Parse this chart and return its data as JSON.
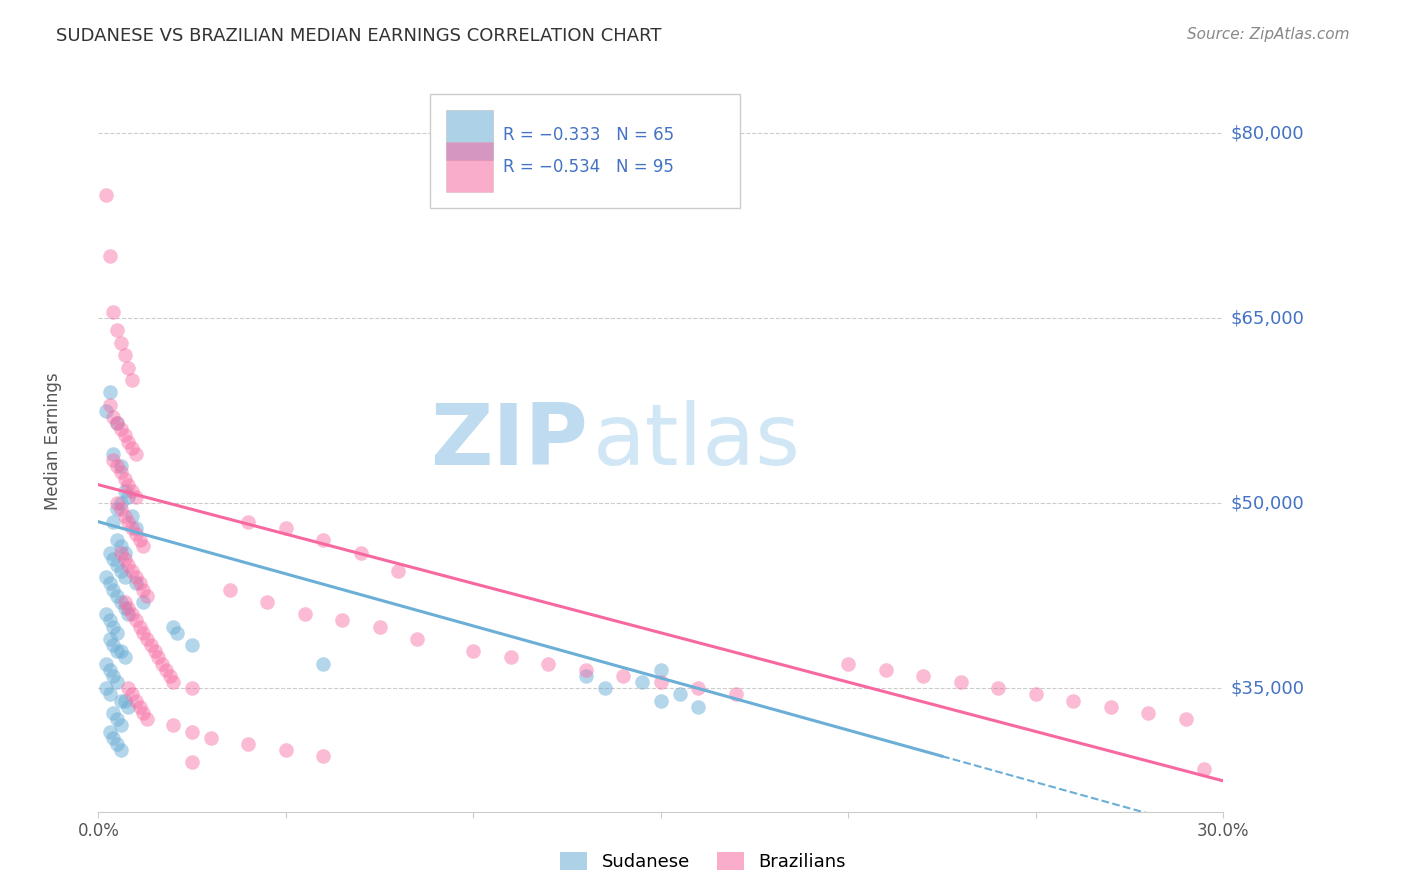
{
  "title": "SUDANESE VS BRAZILIAN MEDIAN EARNINGS CORRELATION CHART",
  "source": "Source: ZipAtlas.com",
  "ylabel": "Median Earnings",
  "yticks": [
    35000,
    50000,
    65000,
    80000
  ],
  "ytick_labels": [
    "$35,000",
    "$50,000",
    "$65,000",
    "$80,000"
  ],
  "ymin": 25000,
  "ymax": 85000,
  "xmin": 0.0,
  "xmax": 0.3,
  "blue_color": "#6baed6",
  "pink_color": "#f768a1",
  "watermark_zip": "ZIP",
  "watermark_atlas": "atlas",
  "watermark_color_zip": "#c5dff0",
  "watermark_color_atlas": "#d8eef8",
  "title_color": "#333333",
  "ytick_color": "#4472c4",
  "grid_color": "#cccccc",
  "blue_line_x0": 0.0,
  "blue_line_x1": 0.225,
  "blue_line_y0": 48500,
  "blue_line_y1": 29500,
  "pink_line_x0": 0.0,
  "pink_line_x1": 0.3,
  "pink_line_y0": 51500,
  "pink_line_y1": 27500,
  "blue_points": [
    [
      0.002,
      57500
    ],
    [
      0.003,
      59000
    ],
    [
      0.004,
      54000
    ],
    [
      0.005,
      56500
    ],
    [
      0.006,
      53000
    ],
    [
      0.007,
      51000
    ],
    [
      0.005,
      49500
    ],
    [
      0.006,
      50000
    ],
    [
      0.008,
      50500
    ],
    [
      0.009,
      49000
    ],
    [
      0.01,
      48000
    ],
    [
      0.004,
      48500
    ],
    [
      0.005,
      47000
    ],
    [
      0.006,
      46500
    ],
    [
      0.007,
      46000
    ],
    [
      0.003,
      46000
    ],
    [
      0.004,
      45500
    ],
    [
      0.005,
      45000
    ],
    [
      0.006,
      44500
    ],
    [
      0.007,
      44000
    ],
    [
      0.002,
      44000
    ],
    [
      0.003,
      43500
    ],
    [
      0.004,
      43000
    ],
    [
      0.005,
      42500
    ],
    [
      0.006,
      42000
    ],
    [
      0.007,
      41500
    ],
    [
      0.008,
      41000
    ],
    [
      0.002,
      41000
    ],
    [
      0.003,
      40500
    ],
    [
      0.004,
      40000
    ],
    [
      0.005,
      39500
    ],
    [
      0.003,
      39000
    ],
    [
      0.004,
      38500
    ],
    [
      0.005,
      38000
    ],
    [
      0.006,
      38000
    ],
    [
      0.007,
      37500
    ],
    [
      0.002,
      37000
    ],
    [
      0.003,
      36500
    ],
    [
      0.004,
      36000
    ],
    [
      0.005,
      35500
    ],
    [
      0.002,
      35000
    ],
    [
      0.003,
      34500
    ],
    [
      0.006,
      34000
    ],
    [
      0.007,
      34000
    ],
    [
      0.008,
      33500
    ],
    [
      0.004,
      33000
    ],
    [
      0.005,
      32500
    ],
    [
      0.006,
      32000
    ],
    [
      0.003,
      31500
    ],
    [
      0.004,
      31000
    ],
    [
      0.005,
      30500
    ],
    [
      0.006,
      30000
    ],
    [
      0.01,
      43500
    ],
    [
      0.012,
      42000
    ],
    [
      0.02,
      40000
    ],
    [
      0.021,
      39500
    ],
    [
      0.025,
      38500
    ],
    [
      0.06,
      37000
    ],
    [
      0.13,
      36000
    ],
    [
      0.15,
      36500
    ],
    [
      0.135,
      35000
    ],
    [
      0.145,
      35500
    ],
    [
      0.15,
      34000
    ],
    [
      0.155,
      34500
    ],
    [
      0.16,
      33500
    ]
  ],
  "pink_points": [
    [
      0.002,
      75000
    ],
    [
      0.003,
      70000
    ],
    [
      0.004,
      65500
    ],
    [
      0.005,
      64000
    ],
    [
      0.006,
      63000
    ],
    [
      0.007,
      62000
    ],
    [
      0.008,
      61000
    ],
    [
      0.009,
      60000
    ],
    [
      0.003,
      58000
    ],
    [
      0.004,
      57000
    ],
    [
      0.005,
      56500
    ],
    [
      0.006,
      56000
    ],
    [
      0.007,
      55500
    ],
    [
      0.008,
      55000
    ],
    [
      0.009,
      54500
    ],
    [
      0.01,
      54000
    ],
    [
      0.004,
      53500
    ],
    [
      0.005,
      53000
    ],
    [
      0.006,
      52500
    ],
    [
      0.007,
      52000
    ],
    [
      0.008,
      51500
    ],
    [
      0.009,
      51000
    ],
    [
      0.01,
      50500
    ],
    [
      0.005,
      50000
    ],
    [
      0.006,
      49500
    ],
    [
      0.007,
      49000
    ],
    [
      0.008,
      48500
    ],
    [
      0.009,
      48000
    ],
    [
      0.01,
      47500
    ],
    [
      0.011,
      47000
    ],
    [
      0.012,
      46500
    ],
    [
      0.006,
      46000
    ],
    [
      0.007,
      45500
    ],
    [
      0.008,
      45000
    ],
    [
      0.009,
      44500
    ],
    [
      0.01,
      44000
    ],
    [
      0.011,
      43500
    ],
    [
      0.012,
      43000
    ],
    [
      0.013,
      42500
    ],
    [
      0.007,
      42000
    ],
    [
      0.008,
      41500
    ],
    [
      0.009,
      41000
    ],
    [
      0.01,
      40500
    ],
    [
      0.011,
      40000
    ],
    [
      0.012,
      39500
    ],
    [
      0.013,
      39000
    ],
    [
      0.014,
      38500
    ],
    [
      0.015,
      38000
    ],
    [
      0.016,
      37500
    ],
    [
      0.017,
      37000
    ],
    [
      0.018,
      36500
    ],
    [
      0.019,
      36000
    ],
    [
      0.02,
      35500
    ],
    [
      0.025,
      35000
    ],
    [
      0.008,
      35000
    ],
    [
      0.009,
      34500
    ],
    [
      0.01,
      34000
    ],
    [
      0.011,
      33500
    ],
    [
      0.012,
      33000
    ],
    [
      0.013,
      32500
    ],
    [
      0.02,
      32000
    ],
    [
      0.025,
      31500
    ],
    [
      0.03,
      31000
    ],
    [
      0.04,
      48500
    ],
    [
      0.05,
      48000
    ],
    [
      0.06,
      47000
    ],
    [
      0.07,
      46000
    ],
    [
      0.08,
      44500
    ],
    [
      0.035,
      43000
    ],
    [
      0.045,
      42000
    ],
    [
      0.055,
      41000
    ],
    [
      0.065,
      40500
    ],
    [
      0.075,
      40000
    ],
    [
      0.085,
      39000
    ],
    [
      0.1,
      38000
    ],
    [
      0.11,
      37500
    ],
    [
      0.12,
      37000
    ],
    [
      0.13,
      36500
    ],
    [
      0.14,
      36000
    ],
    [
      0.15,
      35500
    ],
    [
      0.16,
      35000
    ],
    [
      0.17,
      34500
    ],
    [
      0.2,
      37000
    ],
    [
      0.21,
      36500
    ],
    [
      0.22,
      36000
    ],
    [
      0.23,
      35500
    ],
    [
      0.24,
      35000
    ],
    [
      0.25,
      34500
    ],
    [
      0.26,
      34000
    ],
    [
      0.27,
      33500
    ],
    [
      0.28,
      33000
    ],
    [
      0.29,
      32500
    ],
    [
      0.295,
      28500
    ],
    [
      0.04,
      30500
    ],
    [
      0.05,
      30000
    ],
    [
      0.06,
      29500
    ],
    [
      0.025,
      29000
    ]
  ]
}
